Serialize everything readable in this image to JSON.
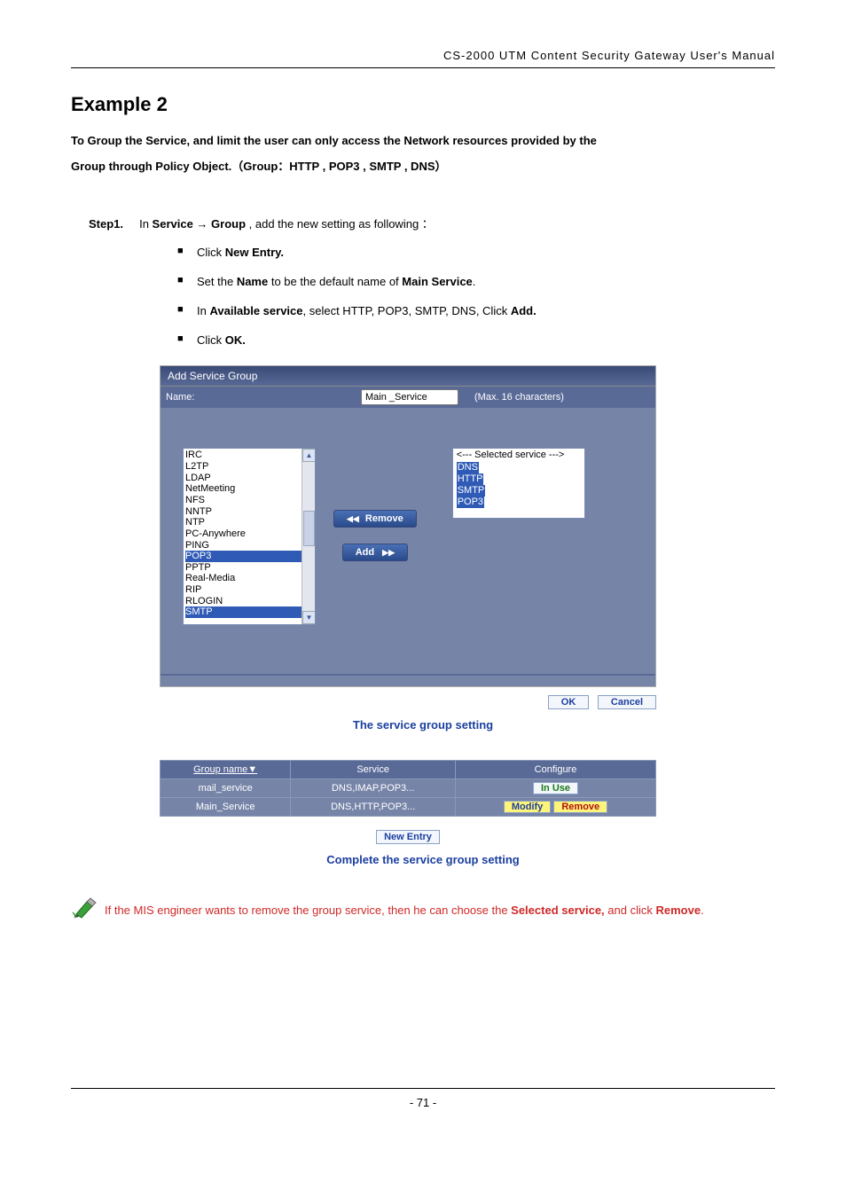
{
  "header": "CS-2000 UTM Content Security Gateway User's Manual",
  "example_title": "Example 2",
  "intro_line1": "To Group the Service, and limit the user can only access the Network resources provided by the",
  "intro_line2": "Group through Policy Object.（Group：HTTP , POP3 , SMTP , DNS）",
  "step1_label": "Step1.",
  "step1_text_a": "In ",
  "step1_text_b": "Service",
  "step1_text_c": "  → ",
  "step1_text_d": "Group",
  "step1_text_e": " , add the new setting as following ：",
  "b1a": "Click ",
  "b1b": "New Entry.",
  "b2a": "Set the ",
  "b2b": "Name",
  "b2c": " to be the default name of ",
  "b2d": "Main Service",
  "b2e": ".",
  "b3a": "In ",
  "b3b": "Available service",
  "b3c": ", select HTTP, POP3, SMTP, DNS, Click ",
  "b3d": "Add.",
  "b4a": "Click ",
  "b4b": "OK.",
  "panel_title": "Add Service Group",
  "name_label": "Name:",
  "name_value": "Main _Service",
  "name_hint": "(Max. 16 characters)",
  "avail": [
    "IRC",
    "L2TP",
    "LDAP",
    "NetMeeting",
    "NFS",
    "NNTP",
    "NTP",
    "PC-Anywhere",
    "PING",
    "POP3",
    "PPTP",
    "Real-Media",
    "RIP",
    "RLOGIN",
    "SMTP"
  ],
  "avail_selected": [
    "POP3",
    "SMTP"
  ],
  "btn_remove": "Remove",
  "btn_add": "Add",
  "selected_hdr": "<--- Selected service --->",
  "selected": [
    "DNS",
    "HTTP",
    "SMTP",
    "POP3"
  ],
  "ok": "OK",
  "cancel": "Cancel",
  "caption1": "The service group setting",
  "th1": "Group name",
  "th2": "Service",
  "th3": "Configure",
  "row1_name": "mail_service",
  "row1_svc": "DNS,IMAP,POP3...",
  "row1_btn": "In  Use",
  "row2_name": "Main_Service",
  "row2_svc": "DNS,HTTP,POP3...",
  "row2_btn1": "Modify",
  "row2_btn2": "Remove",
  "new_entry": "New Entry",
  "caption2": "Complete the service group setting",
  "note_a": "If the MIS engineer wants to remove the group service, then he can choose the ",
  "note_b": "Selected service,",
  "note_c": " and click ",
  "note_d": "Remove",
  "note_e": ".",
  "page_num": "- 71 -",
  "colors": {
    "panel_bg": "#7684a8",
    "header_bg": "#5a6a97",
    "select_bg": "#2f5bb7",
    "link_blue": "#1b3fa0",
    "note_red": "#d02828"
  }
}
